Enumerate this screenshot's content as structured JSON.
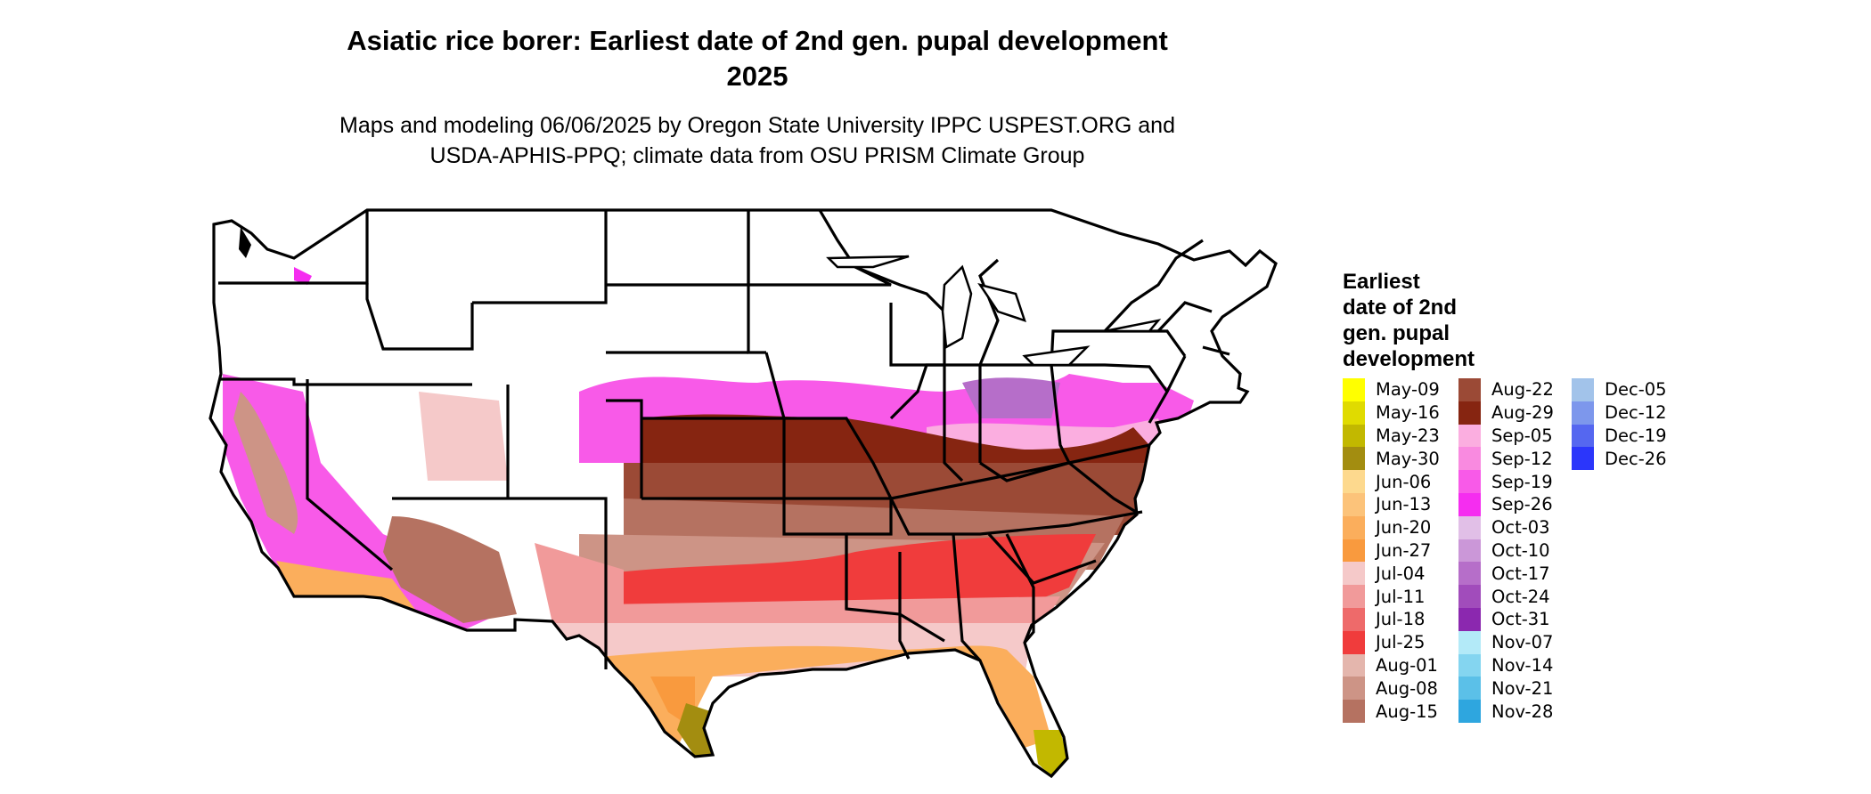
{
  "map": {
    "title_line1": "Asiatic rice borer: Earliest date of 2nd gen. pupal development",
    "title_line2": "2025",
    "subtitle_line1": "Maps and modeling 06/06/2025 by Oregon State University IPPC USPEST.ORG and",
    "subtitle_line2": "USDA-APHIS-PPQ; climate data from OSU PRISM Climate Group",
    "region": "Contiguous United States",
    "no_data_color": "#ffffff",
    "border_color": "#000000"
  },
  "legend": {
    "title_lines": [
      "Earliest",
      "date of 2nd",
      "gen. pupal",
      "development"
    ],
    "columns": [
      [
        {
          "label": "May-09",
          "color": "#ffff00"
        },
        {
          "label": "May-16",
          "color": "#e0db00"
        },
        {
          "label": "May-23",
          "color": "#c2b800"
        },
        {
          "label": "May-30",
          "color": "#a38d10"
        },
        {
          "label": "Jun-06",
          "color": "#fdd98e"
        },
        {
          "label": "Jun-13",
          "color": "#fcc37a"
        },
        {
          "label": "Jun-20",
          "color": "#fbae5c"
        },
        {
          "label": "Jun-27",
          "color": "#f99a3e"
        },
        {
          "label": "Jul-04",
          "color": "#f5c9c9"
        },
        {
          "label": "Jul-11",
          "color": "#f19a9a"
        },
        {
          "label": "Jul-18",
          "color": "#ee6a6a"
        },
        {
          "label": "Jul-25",
          "color": "#f03c3c"
        },
        {
          "label": "Aug-01",
          "color": "#e4b6ad"
        },
        {
          "label": "Aug-08",
          "color": "#cd9486"
        },
        {
          "label": "Aug-15",
          "color": "#b57261"
        }
      ],
      [
        {
          "label": "Aug-22",
          "color": "#9b4a36"
        },
        {
          "label": "Aug-29",
          "color": "#862511"
        },
        {
          "label": "Sep-05",
          "color": "#fbaee0"
        },
        {
          "label": "Sep-12",
          "color": "#f98ae0"
        },
        {
          "label": "Sep-19",
          "color": "#f85ae8"
        },
        {
          "label": "Sep-26",
          "color": "#f52df0"
        },
        {
          "label": "Oct-03",
          "color": "#e1bfe7"
        },
        {
          "label": "Oct-10",
          "color": "#cb97d8"
        },
        {
          "label": "Oct-17",
          "color": "#b66ec9"
        },
        {
          "label": "Oct-24",
          "color": "#a14cbb"
        },
        {
          "label": "Oct-31",
          "color": "#8b28af"
        },
        {
          "label": "Nov-07",
          "color": "#b3eaf8"
        },
        {
          "label": "Nov-14",
          "color": "#84d5f0"
        },
        {
          "label": "Nov-21",
          "color": "#5bc0e8"
        },
        {
          "label": "Nov-28",
          "color": "#2ea6df"
        }
      ],
      [
        {
          "label": "Dec-05",
          "color": "#a2c3ea"
        },
        {
          "label": "Dec-12",
          "color": "#7d97ec"
        },
        {
          "label": "Dec-19",
          "color": "#5567f0"
        },
        {
          "label": "Dec-26",
          "color": "#2b36fb"
        }
      ]
    ]
  }
}
